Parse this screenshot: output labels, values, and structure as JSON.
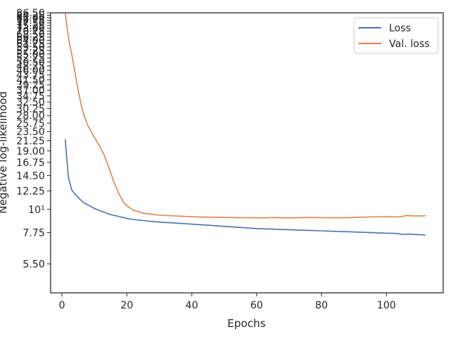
{
  "chart_data": {
    "type": "line",
    "xlabel": "Epochs",
    "ylabel": "Negative log-likelihood",
    "xlim": [
      -3.5,
      117.5
    ],
    "ylim": [
      4.0,
      86.5
    ],
    "y_scale": "log",
    "x_ticks": [
      0,
      20,
      40,
      60,
      80,
      100
    ],
    "y_tick_labels": [
      {
        "value": 5.5,
        "label": "5.50"
      },
      {
        "value": 7.75,
        "label": "7.75"
      },
      {
        "value": 10,
        "label": "10¹"
      },
      {
        "value": 12.25,
        "label": "12.25"
      },
      {
        "value": 14.5,
        "label": "14.50"
      },
      {
        "value": 16.75,
        "label": "16.75"
      },
      {
        "value": 19.0,
        "label": "19.00"
      },
      {
        "value": 21.25,
        "label": "21.25"
      },
      {
        "value": 23.5,
        "label": "23.50"
      },
      {
        "value": 25.75,
        "label": "25.75"
      },
      {
        "value": 28.0,
        "label": "28.00"
      },
      {
        "value": 30.25,
        "label": "30.25"
      },
      {
        "value": 32.5,
        "label": "32.50"
      },
      {
        "value": 34.75,
        "label": "34.75"
      },
      {
        "value": 37.0,
        "label": "37.00"
      },
      {
        "value": 39.25,
        "label": "39.25"
      },
      {
        "value": 41.5,
        "label": "41.50"
      },
      {
        "value": 43.75,
        "label": "43.75"
      },
      {
        "value": 46.0,
        "label": "46.00"
      },
      {
        "value": 48.25,
        "label": "48.25"
      },
      {
        "value": 50.5,
        "label": "50.50"
      },
      {
        "value": 52.75,
        "label": "52.75"
      },
      {
        "value": 55.0,
        "label": "55.00"
      },
      {
        "value": 57.25,
        "label": "57.25"
      },
      {
        "value": 59.5,
        "label": "59.50"
      },
      {
        "value": 61.75,
        "label": "61.75"
      },
      {
        "value": 64.0,
        "label": "64.00"
      },
      {
        "value": 66.25,
        "label": "66.25"
      },
      {
        "value": 68.5,
        "label": "68.50"
      },
      {
        "value": 70.75,
        "label": "70.75"
      },
      {
        "value": 73.0,
        "label": "73.00"
      },
      {
        "value": 75.25,
        "label": "75.25"
      },
      {
        "value": 77.5,
        "label": "77.50"
      },
      {
        "value": 79.75,
        "label": "79.75"
      },
      {
        "value": 82.0,
        "label": "82.00"
      },
      {
        "value": 84.25,
        "label": "84.25"
      },
      {
        "value": 86.5,
        "label": "86.50"
      }
    ],
    "legend": {
      "position": "top-right"
    },
    "grid": false,
    "series": [
      {
        "name": "Loss",
        "color": "#4c72b0",
        "points": [
          [
            1,
            21.6
          ],
          [
            2,
            14.2
          ],
          [
            3,
            12.4
          ],
          [
            4,
            11.8
          ],
          [
            5,
            11.4
          ],
          [
            6,
            11.0
          ],
          [
            7,
            10.7
          ],
          [
            8,
            10.5
          ],
          [
            9,
            10.3
          ],
          [
            10,
            10.1
          ],
          [
            11,
            9.95
          ],
          [
            12,
            9.8
          ],
          [
            13,
            9.7
          ],
          [
            14,
            9.55
          ],
          [
            15,
            9.45
          ],
          [
            16,
            9.35
          ],
          [
            17,
            9.3
          ],
          [
            18,
            9.2
          ],
          [
            19,
            9.15
          ],
          [
            20,
            9.05
          ],
          [
            22,
            8.95
          ],
          [
            25,
            8.85
          ],
          [
            28,
            8.75
          ],
          [
            30,
            8.7
          ],
          [
            35,
            8.6
          ],
          [
            40,
            8.5
          ],
          [
            45,
            8.4
          ],
          [
            50,
            8.3
          ],
          [
            55,
            8.2
          ],
          [
            60,
            8.1
          ],
          [
            65,
            8.05
          ],
          [
            70,
            8.0
          ],
          [
            75,
            7.95
          ],
          [
            80,
            7.9
          ],
          [
            85,
            7.85
          ],
          [
            90,
            7.8
          ],
          [
            95,
            7.75
          ],
          [
            100,
            7.7
          ],
          [
            103,
            7.68
          ],
          [
            105,
            7.6
          ],
          [
            107,
            7.62
          ],
          [
            110,
            7.58
          ],
          [
            112,
            7.55
          ]
        ]
      },
      {
        "name": "Val. loss",
        "color": "#dd8452",
        "points": [
          [
            1,
            86.0
          ],
          [
            2,
            66.0
          ],
          [
            3,
            55.0
          ],
          [
            4,
            45.0
          ],
          [
            5,
            37.0
          ],
          [
            6,
            31.0
          ],
          [
            7,
            27.5
          ],
          [
            8,
            25.0
          ],
          [
            9,
            23.5
          ],
          [
            10,
            22.0
          ],
          [
            11,
            20.8
          ],
          [
            12,
            19.5
          ],
          [
            13,
            18.2
          ],
          [
            14,
            16.5
          ],
          [
            15,
            15.0
          ],
          [
            16,
            13.5
          ],
          [
            17,
            12.4
          ],
          [
            18,
            11.5
          ],
          [
            19,
            10.8
          ],
          [
            20,
            10.4
          ],
          [
            22,
            9.9
          ],
          [
            25,
            9.6
          ],
          [
            28,
            9.45
          ],
          [
            30,
            9.38
          ],
          [
            35,
            9.3
          ],
          [
            40,
            9.22
          ],
          [
            45,
            9.18
          ],
          [
            50,
            9.15
          ],
          [
            55,
            9.12
          ],
          [
            60,
            9.12
          ],
          [
            62,
            9.1
          ],
          [
            65,
            9.15
          ],
          [
            70,
            9.1
          ],
          [
            75,
            9.15
          ],
          [
            80,
            9.12
          ],
          [
            85,
            9.12
          ],
          [
            90,
            9.15
          ],
          [
            95,
            9.2
          ],
          [
            100,
            9.22
          ],
          [
            103,
            9.2
          ],
          [
            105,
            9.25
          ],
          [
            106,
            9.35
          ],
          [
            108,
            9.3
          ],
          [
            110,
            9.3
          ],
          [
            112,
            9.32
          ]
        ]
      }
    ]
  }
}
